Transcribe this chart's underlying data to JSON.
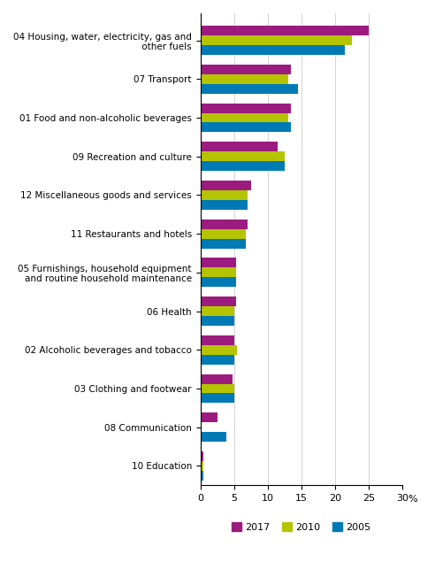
{
  "categories": [
    "04 Housing, water, electricity, gas and\n other fuels",
    "07 Transport",
    "01 Food and non-alcoholic beverages",
    "09 Recreation and culture",
    "12 Miscellaneous goods and services",
    "11 Restaurants and hotels",
    "05 Furnishings, household equipment\nand routine household maintenance",
    "06 Health",
    "02 Alcoholic beverages and tobacco",
    "03 Clothing and footwear",
    "08 Communication",
    "10 Education"
  ],
  "values_2017": [
    25.0,
    13.5,
    13.5,
    11.5,
    7.5,
    7.0,
    5.3,
    5.3,
    5.0,
    4.8,
    2.5,
    0.4
  ],
  "values_2010": [
    22.5,
    13.0,
    13.0,
    12.5,
    7.0,
    6.8,
    5.3,
    5.0,
    5.5,
    5.0,
    0.0,
    0.4
  ],
  "values_2005": [
    21.5,
    14.5,
    13.5,
    12.5,
    7.0,
    6.8,
    5.3,
    5.0,
    5.0,
    5.0,
    3.8,
    0.5
  ],
  "color_2017": "#9b1c7e",
  "color_2010": "#b5c400",
  "color_2005": "#007ab5",
  "xlim": [
    0,
    30
  ],
  "xticks": [
    0,
    5,
    10,
    15,
    20,
    25,
    30
  ],
  "bar_height": 0.25,
  "legend_labels": [
    "2017",
    "2010",
    "2005"
  ],
  "figsize": [
    4.92,
    6.44
  ],
  "dpi": 100
}
